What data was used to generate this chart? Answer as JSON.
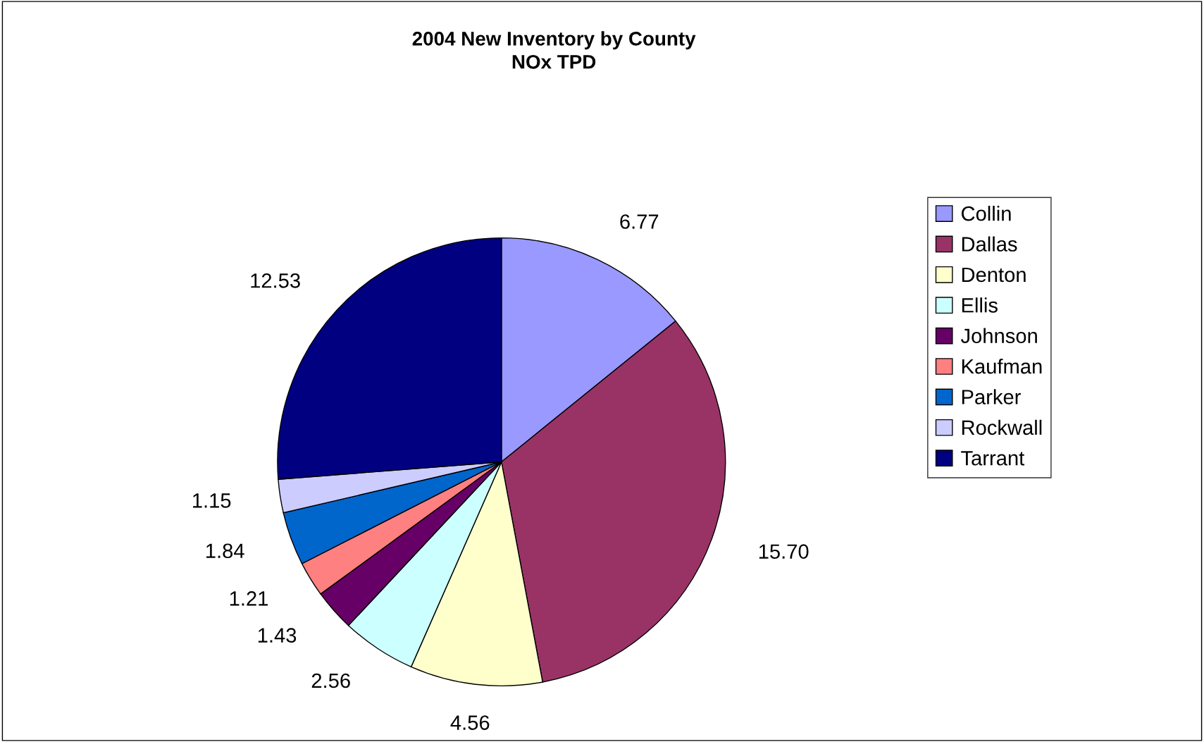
{
  "chart_data": {
    "type": "pie",
    "title": "2004 New Inventory by County\nNOx TPD",
    "categories": [
      "Collin",
      "Dallas",
      "Denton",
      "Ellis",
      "Johnson",
      "Kaufman",
      "Parker",
      "Rockwall",
      "Tarrant"
    ],
    "values": [
      6.77,
      15.7,
      4.56,
      2.56,
      1.43,
      1.21,
      1.84,
      1.15,
      12.53
    ],
    "value_labels": [
      "6.77",
      "15.70",
      "4.56",
      "2.56",
      "1.43",
      "1.21",
      "1.84",
      "1.15",
      "12.53"
    ],
    "colors": [
      "#9999ff",
      "#993366",
      "#ffffcc",
      "#ccffff",
      "#660066",
      "#ff8080",
      "#0066cc",
      "#ccccff",
      "#000080"
    ],
    "legend": "right"
  }
}
